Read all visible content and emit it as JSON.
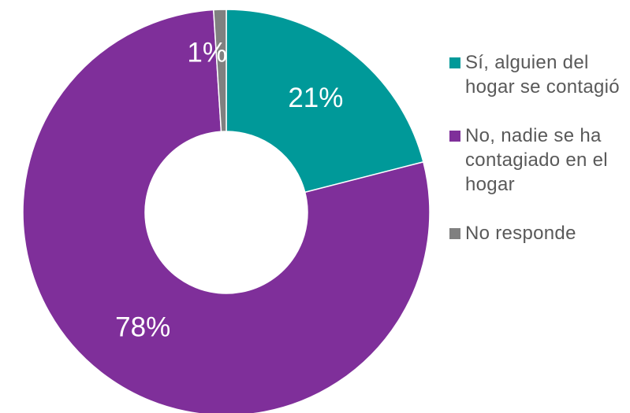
{
  "chart_data": {
    "type": "pie",
    "donut": true,
    "title": "",
    "slices": [
      {
        "label": "Sí, alguien del hogar se contagió",
        "value": 21,
        "display": "21%",
        "color": "#009999"
      },
      {
        "label": "No, nadie se ha contagiado en el hogar",
        "value": 78,
        "display": "78%",
        "color": "#7F2F9A"
      },
      {
        "label": "No responde",
        "value": 1,
        "display": "1%",
        "color": "#808080"
      }
    ],
    "legend_position": "right",
    "label_colors": {
      "21%": "#ffffff",
      "78%": "#ffffff",
      "1%": "#ffffff"
    }
  }
}
